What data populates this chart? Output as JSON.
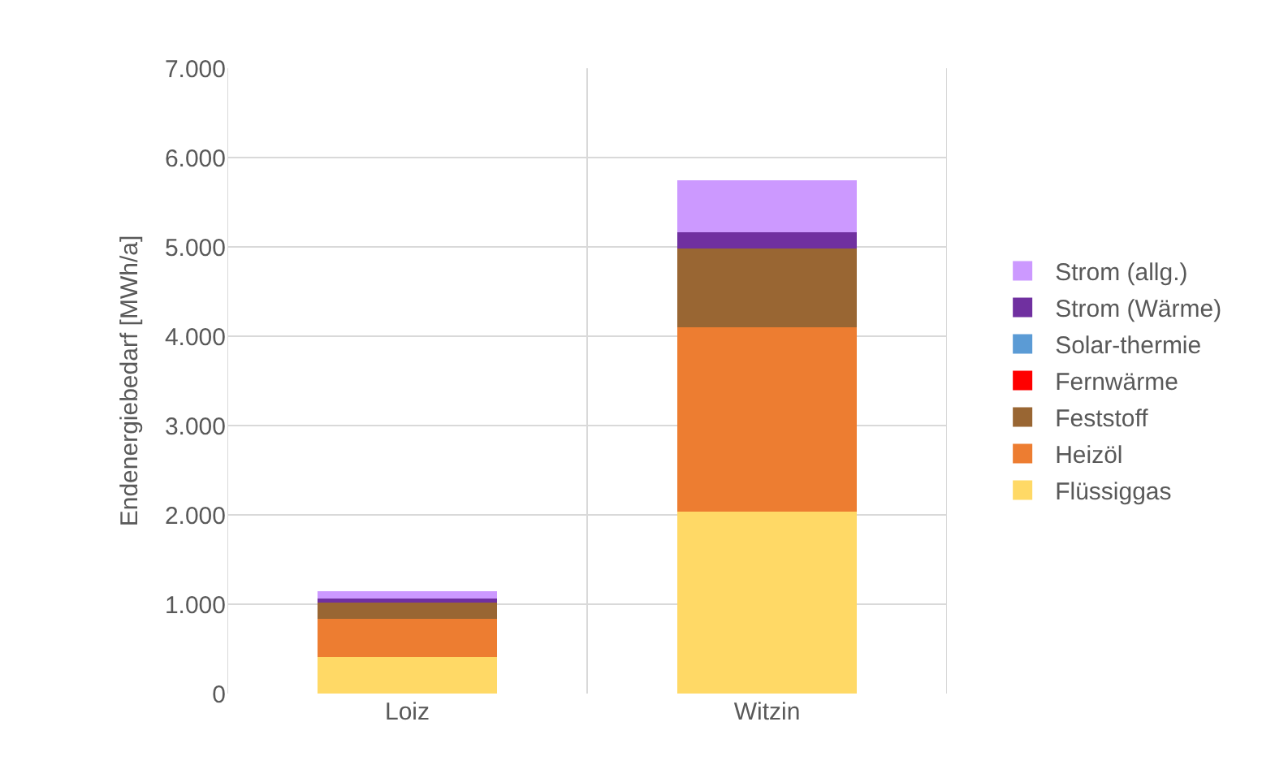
{
  "chart_data": {
    "type": "bar",
    "stacked": true,
    "ylabel": "Endenergiebedarf [MWh/a]",
    "categories": [
      "Loiz",
      "Witzin"
    ],
    "series": [
      {
        "name": "Flüssiggas",
        "color": "#ffd966",
        "values": [
          410,
          2040
        ]
      },
      {
        "name": "Heizöl",
        "color": "#ed7d31",
        "values": [
          430,
          2060
        ]
      },
      {
        "name": "Feststoff",
        "color": "#996633",
        "values": [
          180,
          880
        ]
      },
      {
        "name": "Fernwärme",
        "color": "#ff0000",
        "values": [
          0,
          0
        ]
      },
      {
        "name": "Solar-thermie",
        "color": "#5b9bd5",
        "values": [
          0,
          0
        ]
      },
      {
        "name": "Strom (Wärme)",
        "color": "#7030a0",
        "values": [
          40,
          180
        ]
      },
      {
        "name": "Strom (allg.)",
        "color": "#cc99ff",
        "values": [
          90,
          590
        ]
      }
    ],
    "ylim": [
      0,
      7000
    ],
    "yticks": [
      {
        "value": 0,
        "label": "0"
      },
      {
        "value": 1000,
        "label": "1.000"
      },
      {
        "value": 2000,
        "label": "2.000"
      },
      {
        "value": 3000,
        "label": "3.000"
      },
      {
        "value": 4000,
        "label": "4.000"
      },
      {
        "value": 5000,
        "label": "5.000"
      },
      {
        "value": 6000,
        "label": "6.000"
      },
      {
        "value": 7000,
        "label": "7.000"
      }
    ],
    "grid": true,
    "legend": "right"
  }
}
